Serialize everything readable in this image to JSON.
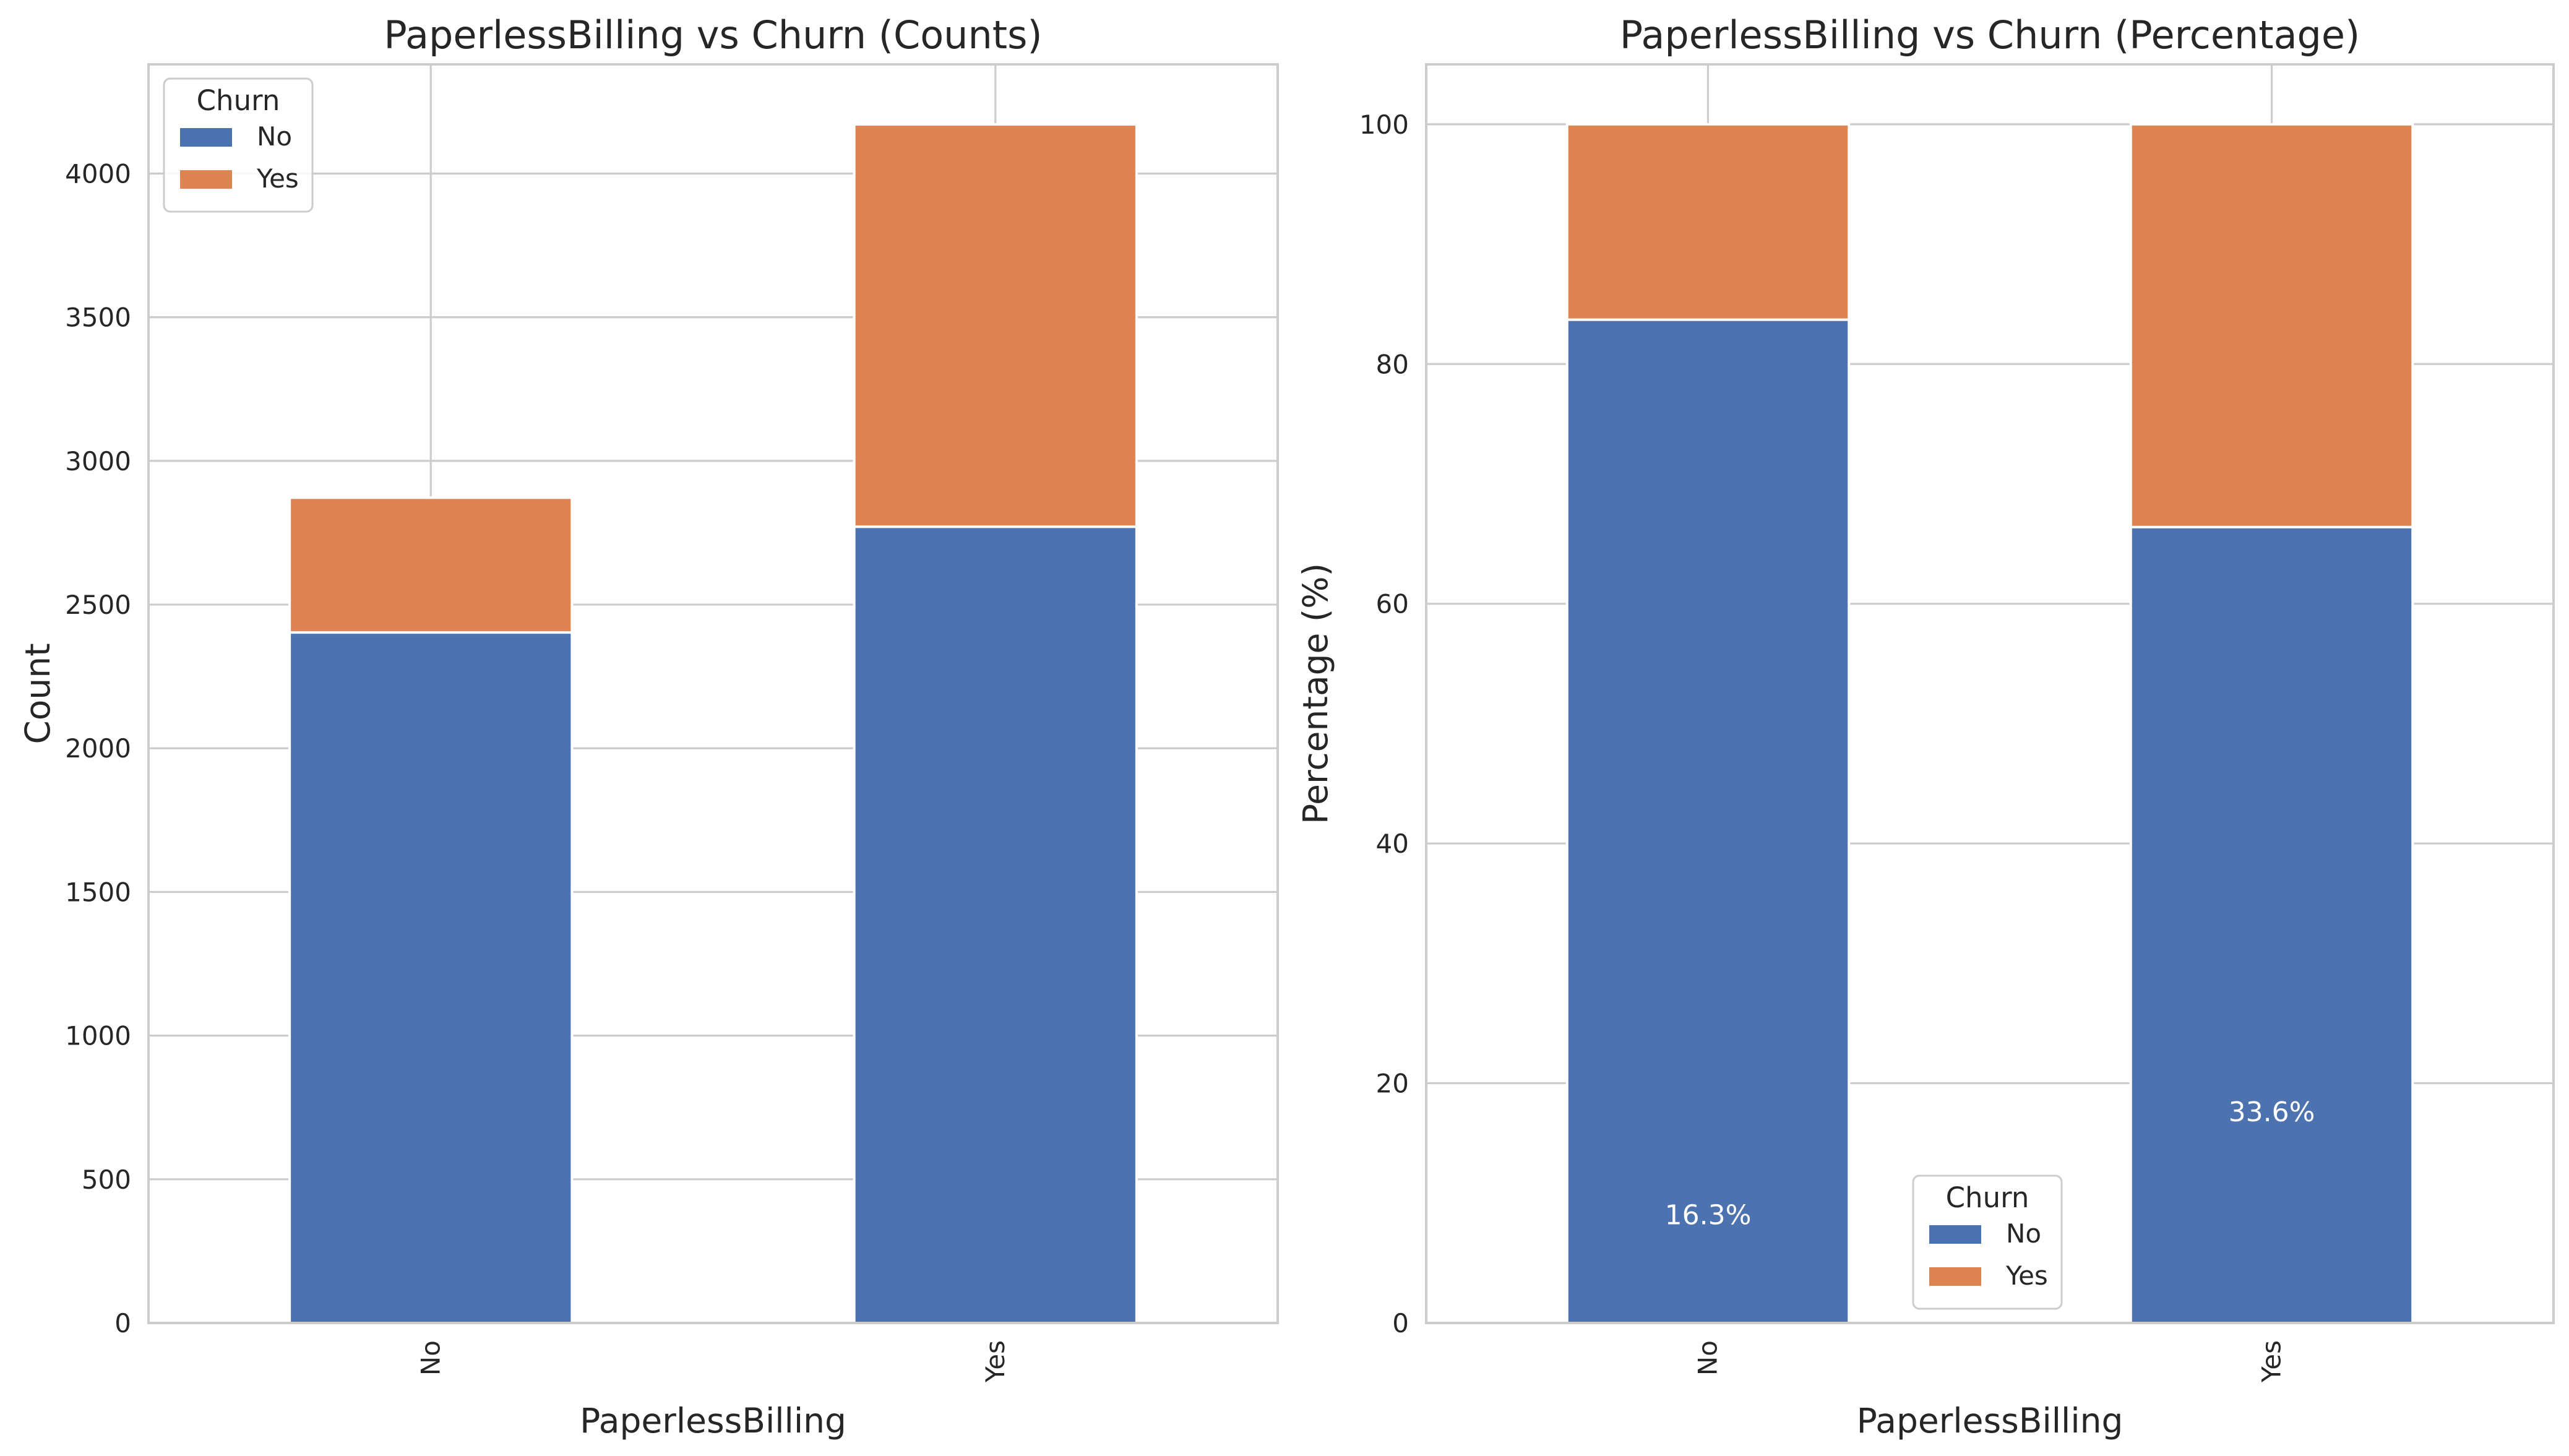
{
  "colors": {
    "No": "#4c72b0",
    "Yes": "#dd8452",
    "grid": "#cccccc",
    "spine": "#cccccc",
    "text": "#262626"
  },
  "legend_title": "Churn",
  "chart_data": [
    {
      "type": "bar",
      "stacked": true,
      "title": "PaperlessBilling vs Churn (Counts)",
      "xlabel": "PaperlessBilling",
      "ylabel": "Count",
      "categories": [
        "No",
        "Yes"
      ],
      "series": [
        {
          "name": "No",
          "values": [
            2403,
            2771
          ]
        },
        {
          "name": "Yes",
          "values": [
            469,
            1400
          ]
        }
      ],
      "ylim": [
        0,
        4380
      ],
      "yticks": [
        0,
        500,
        1000,
        1500,
        2000,
        2500,
        3000,
        3500,
        4000
      ],
      "grid": true,
      "legend": {
        "title": "Churn",
        "placement": "upper-left"
      },
      "annotations": []
    },
    {
      "type": "bar",
      "stacked": true,
      "title": "PaperlessBilling vs Churn (Percentage)",
      "xlabel": "PaperlessBilling",
      "ylabel": "Percentage (%)",
      "categories": [
        "No",
        "Yes"
      ],
      "series": [
        {
          "name": "No",
          "values": [
            83.7,
            66.4
          ]
        },
        {
          "name": "Yes",
          "values": [
            16.3,
            33.6
          ]
        }
      ],
      "ylim": [
        0,
        105
      ],
      "yticks": [
        0,
        20,
        40,
        60,
        80,
        100
      ],
      "grid": true,
      "legend": {
        "title": "Churn",
        "placement": "lower-center"
      },
      "annotations": [
        {
          "category": "No",
          "text": "16.3%",
          "y": 9
        },
        {
          "category": "Yes",
          "text": "33.6%",
          "y": 17.6
        }
      ]
    }
  ]
}
